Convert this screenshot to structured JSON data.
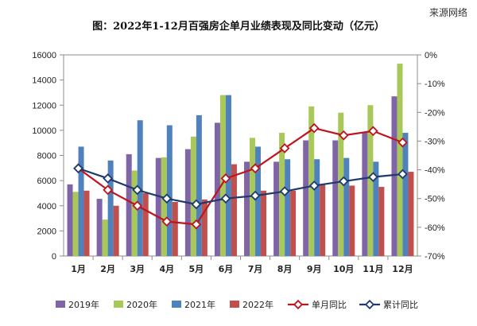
{
  "page": {
    "title": "图：2022年1-12月百强房企单月业绩表现及同比变动（亿元）",
    "watermark": "来源网络"
  },
  "chart_data": {
    "type": "bar",
    "categories": [
      "1月",
      "2月",
      "3月",
      "4月",
      "5月",
      "6月",
      "7月",
      "8月",
      "9月",
      "10月",
      "11月",
      "12月"
    ],
    "y_left": {
      "min": 0,
      "max": 16000,
      "ticks": [
        0,
        2000,
        4000,
        6000,
        8000,
        10000,
        12000,
        14000,
        16000
      ]
    },
    "y_right": {
      "min": -70,
      "max": 0,
      "ticks": [
        0,
        -10,
        -20,
        -30,
        -40,
        -50,
        -60,
        -70
      ],
      "tick_labels": [
        "0%",
        "-10%",
        "-20%",
        "-30%",
        "-40%",
        "-50%",
        "-60%",
        "-70%"
      ]
    },
    "bar_series": [
      {
        "name": "2019年",
        "color": "#7f64a8",
        "values": [
          5700,
          4550,
          8100,
          7800,
          8500,
          10600,
          7500,
          7500,
          9200,
          9200,
          9800,
          12700
        ]
      },
      {
        "name": "2020年",
        "color": "#a8c85a",
        "values": [
          5100,
          2900,
          6800,
          7850,
          9500,
          12800,
          9400,
          9800,
          11900,
          11400,
          12000,
          15300
        ]
      },
      {
        "name": "2021年",
        "color": "#4f81bd",
        "values": [
          8700,
          7600,
          10800,
          10400,
          11200,
          12800,
          8700,
          7700,
          7700,
          7800,
          7500,
          9800
        ]
      },
      {
        "name": "2022年",
        "color": "#c0504d",
        "values": [
          5200,
          4000,
          5000,
          4300,
          4500,
          7300,
          5200,
          5200,
          5700,
          5600,
          5500,
          6700
        ]
      }
    ],
    "line_series": [
      {
        "name": "单月同比",
        "color": "#c0141c",
        "values": [
          -39.5,
          -47,
          -52.5,
          -58,
          -59,
          -43,
          -39.5,
          -32.5,
          -25.5,
          -28,
          -26.5,
          -30.5
        ]
      },
      {
        "name": "累计同比",
        "color": "#1f3a6e",
        "values": [
          -39.5,
          -43,
          -47,
          -50,
          -52,
          -50,
          -49,
          -47.5,
          -45.5,
          -44,
          -42.5,
          -41.5
        ]
      }
    ]
  }
}
